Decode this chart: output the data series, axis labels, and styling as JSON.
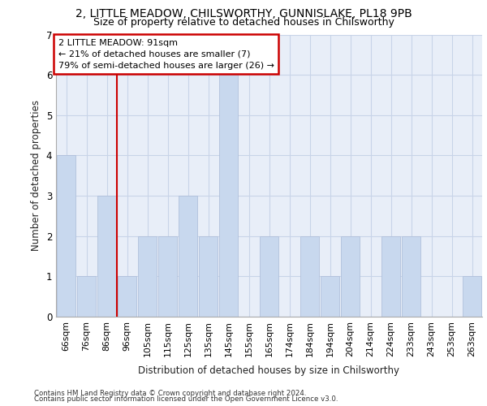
{
  "title1": "2, LITTLE MEADOW, CHILSWORTHY, GUNNISLAKE, PL18 9PB",
  "title2": "Size of property relative to detached houses in Chilsworthy",
  "xlabel": "Distribution of detached houses by size in Chilsworthy",
  "ylabel": "Number of detached properties",
  "categories": [
    "66sqm",
    "76sqm",
    "86sqm",
    "96sqm",
    "105sqm",
    "115sqm",
    "125sqm",
    "135sqm",
    "145sqm",
    "155sqm",
    "165sqm",
    "174sqm",
    "184sqm",
    "194sqm",
    "204sqm",
    "214sqm",
    "224sqm",
    "233sqm",
    "243sqm",
    "253sqm",
    "263sqm"
  ],
  "values": [
    4,
    1,
    3,
    1,
    2,
    2,
    3,
    2,
    6,
    0,
    2,
    0,
    2,
    1,
    2,
    0,
    2,
    2,
    0,
    0,
    1
  ],
  "bar_color": "#c8d8ee",
  "bar_edgecolor": "#aabbd8",
  "red_line_index": 3,
  "annotation_text": "2 LITTLE MEADOW: 91sqm\n← 21% of detached houses are smaller (7)\n79% of semi-detached houses are larger (26) →",
  "annotation_box_color": "#ffffff",
  "annotation_box_edgecolor": "#cc0000",
  "ylim": [
    0,
    7
  ],
  "yticks": [
    0,
    1,
    2,
    3,
    4,
    5,
    6,
    7
  ],
  "grid_color": "#c8d4e8",
  "bg_color": "#e8eef8",
  "footnote1": "Contains HM Land Registry data © Crown copyright and database right 2024.",
  "footnote2": "Contains public sector information licensed under the Open Government Licence v3.0."
}
